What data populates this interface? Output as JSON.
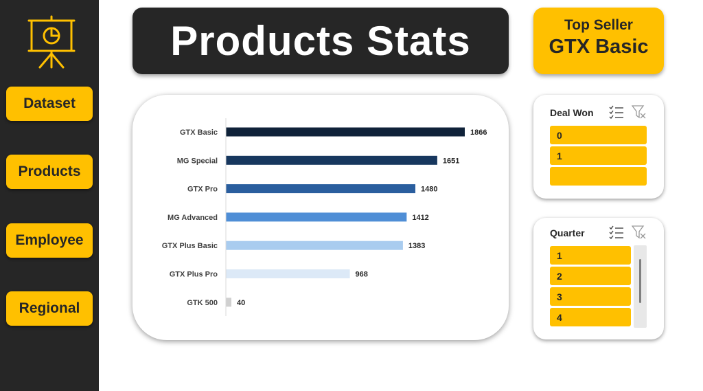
{
  "sidebar": {
    "items": [
      {
        "label": "Dataset"
      },
      {
        "label": "Products"
      },
      {
        "label": "Employee"
      },
      {
        "label": "Regional"
      }
    ]
  },
  "header": {
    "title": "Products Stats"
  },
  "top_seller": {
    "label": "Top Seller",
    "value": "GTX Basic"
  },
  "chart_data": {
    "type": "bar",
    "orientation": "horizontal",
    "categories": [
      "GTX Basic",
      "MG Special",
      "GTX Pro",
      "MG Advanced",
      "GTX Plus Basic",
      "GTX Plus Pro",
      "GTK 500"
    ],
    "values": [
      1866,
      1651,
      1480,
      1412,
      1383,
      968,
      40
    ],
    "colors": [
      "#0F2239",
      "#17375E",
      "#2A5E9E",
      "#4F8ED6",
      "#A9CCEF",
      "#DCE9F7",
      "#D0D0D0"
    ],
    "title": "",
    "xlabel": "",
    "ylabel": "",
    "xlim": [
      0,
      1866
    ],
    "grid": false,
    "data_labels": true
  },
  "slicers": {
    "deal_won": {
      "title": "Deal Won",
      "items": [
        "0",
        "1",
        ""
      ]
    },
    "quarter": {
      "title": "Quarter",
      "items": [
        "1",
        "2",
        "3",
        "4"
      ]
    }
  },
  "colors": {
    "accent": "#FFC000",
    "dark": "#262626"
  }
}
